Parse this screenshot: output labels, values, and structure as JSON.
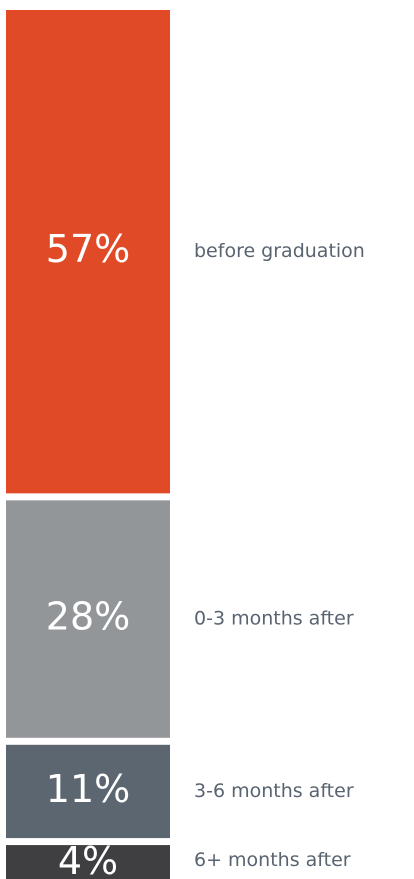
{
  "chart_data": {
    "type": "stacked-bar",
    "categories": [
      "before graduation",
      "0-3 months after",
      "3-6 months after",
      "6+ months after"
    ],
    "values": [
      57,
      28,
      11,
      4
    ],
    "value_labels": [
      "57%",
      "28%",
      "11%",
      "4%"
    ],
    "colors": [
      "#e04a26",
      "#939699",
      "#5c6670",
      "#3f3f41"
    ]
  }
}
